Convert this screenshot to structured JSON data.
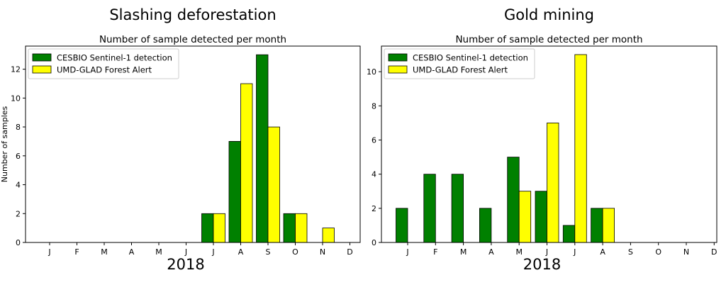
{
  "colors": {
    "cesbio": "#008000",
    "umd": "#ffff00",
    "bar_edge": "#000000"
  },
  "chart_data": [
    {
      "type": "bar",
      "title": "Slashing deforestation",
      "subtitle": "Number of sample detected per month",
      "xlabel": "2018",
      "ylabel": "Number of samples",
      "categories": [
        "J",
        "F",
        "M",
        "A",
        "M",
        "J",
        "J",
        "A",
        "S",
        "O",
        "N",
        "D"
      ],
      "ylim": [
        0,
        13.6
      ],
      "yticks": [
        0,
        2,
        4,
        6,
        8,
        10,
        12
      ],
      "legend_position": "top-left",
      "grid": false,
      "series": [
        {
          "name": "CESBIO Sentinel-1 detection",
          "values": [
            0,
            0,
            0,
            0,
            0,
            0,
            2,
            7,
            13,
            2,
            0,
            0
          ]
        },
        {
          "name": "UMD-GLAD Forest Alert",
          "values": [
            0,
            0,
            0,
            0,
            0,
            0,
            2,
            11,
            8,
            2,
            1,
            0
          ]
        }
      ]
    },
    {
      "type": "bar",
      "title": "Gold mining",
      "subtitle": "Number of sample detected per month",
      "xlabel": "2018",
      "ylabel": "",
      "categories": [
        "J",
        "F",
        "M",
        "A",
        "M",
        "J",
        "J",
        "A",
        "S",
        "O",
        "N",
        "D"
      ],
      "ylim": [
        0,
        11.5
      ],
      "yticks": [
        0,
        2,
        4,
        6,
        8,
        10
      ],
      "legend_position": "top-left",
      "grid": false,
      "series": [
        {
          "name": "CESBIO Sentinel-1 detection",
          "values": [
            2,
            4,
            4,
            2,
            5,
            3,
            1,
            2,
            0,
            0,
            0,
            0
          ]
        },
        {
          "name": "UMD-GLAD Forest Alert",
          "values": [
            0,
            0,
            0,
            0,
            3,
            7,
            11,
            2,
            0,
            0,
            0,
            0
          ]
        }
      ]
    }
  ]
}
